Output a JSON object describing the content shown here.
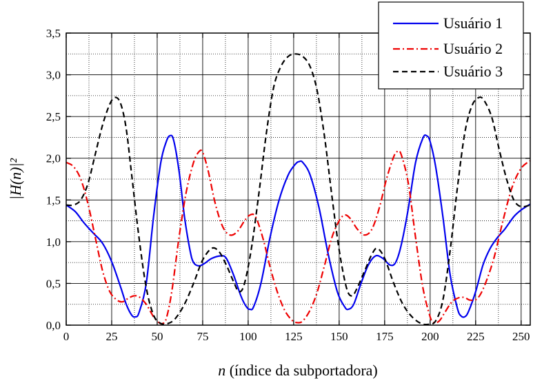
{
  "chart_data": {
    "type": "line",
    "xlabel_var": "n",
    "xlabel_rest": " (índice da subportadora)",
    "ylabel": "|H(n)|²",
    "xlim": [
      0,
      255
    ],
    "ylim": [
      0,
      3.5
    ],
    "xticks": [
      0,
      25,
      50,
      75,
      100,
      125,
      150,
      175,
      200,
      225,
      250
    ],
    "xtick_labels": [
      "0",
      "25",
      "50",
      "75",
      "100",
      "125",
      "150",
      "175",
      "200",
      "225",
      "250"
    ],
    "yticks": [
      0,
      0.5,
      1.0,
      1.5,
      2.0,
      2.5,
      3.0,
      3.5
    ],
    "ytick_labels": [
      "0,0",
      "0,5",
      "1,0",
      "1,5",
      "2,0",
      "2,5",
      "3,0",
      "3,5"
    ],
    "grid": true,
    "legend_position": "top-right",
    "series": [
      {
        "name": "Usuário 1",
        "color": "#0000ee",
        "dash": "solid",
        "points": [
          [
            0,
            1.44
          ],
          [
            5,
            1.36
          ],
          [
            10,
            1.22
          ],
          [
            15,
            1.1
          ],
          [
            20,
            0.98
          ],
          [
            25,
            0.76
          ],
          [
            30,
            0.45
          ],
          [
            33,
            0.25
          ],
          [
            36,
            0.12
          ],
          [
            38,
            0.1
          ],
          [
            40,
            0.15
          ],
          [
            44,
            0.5
          ],
          [
            48,
            1.3
          ],
          [
            52,
            1.95
          ],
          [
            55,
            2.2
          ],
          [
            57,
            2.27
          ],
          [
            59,
            2.22
          ],
          [
            62,
            1.85
          ],
          [
            65,
            1.3
          ],
          [
            68,
            0.9
          ],
          [
            70,
            0.75
          ],
          [
            73,
            0.71
          ],
          [
            76,
            0.74
          ],
          [
            80,
            0.8
          ],
          [
            85,
            0.83
          ],
          [
            88,
            0.8
          ],
          [
            92,
            0.6
          ],
          [
            96,
            0.35
          ],
          [
            99,
            0.22
          ],
          [
            101,
            0.19
          ],
          [
            103,
            0.22
          ],
          [
            107,
            0.5
          ],
          [
            112,
            1.05
          ],
          [
            117,
            1.5
          ],
          [
            122,
            1.8
          ],
          [
            126,
            1.93
          ],
          [
            128,
            1.96
          ],
          [
            130,
            1.95
          ],
          [
            134,
            1.8
          ],
          [
            139,
            1.4
          ],
          [
            144,
            0.85
          ],
          [
            149,
            0.4
          ],
          [
            153,
            0.22
          ],
          [
            155,
            0.19
          ],
          [
            158,
            0.25
          ],
          [
            162,
            0.5
          ],
          [
            166,
            0.72
          ],
          [
            170,
            0.83
          ],
          [
            174,
            0.8
          ],
          [
            178,
            0.72
          ],
          [
            181,
            0.75
          ],
          [
            184,
            0.95
          ],
          [
            188,
            1.4
          ],
          [
            192,
            1.95
          ],
          [
            196,
            2.24
          ],
          [
            198,
            2.27
          ],
          [
            200,
            2.2
          ],
          [
            203,
            1.9
          ],
          [
            207,
            1.3
          ],
          [
            211,
            0.6
          ],
          [
            215,
            0.2
          ],
          [
            217,
            0.11
          ],
          [
            219,
            0.1
          ],
          [
            221,
            0.16
          ],
          [
            225,
            0.4
          ],
          [
            229,
            0.72
          ],
          [
            233,
            0.92
          ],
          [
            237,
            1.05
          ],
          [
            241,
            1.15
          ],
          [
            246,
            1.3
          ],
          [
            250,
            1.38
          ],
          [
            255,
            1.45
          ]
        ]
      },
      {
        "name": "Usuário 2",
        "color": "#ee0000",
        "dash": "10,4,2,4",
        "points": [
          [
            0,
            1.95
          ],
          [
            4,
            1.9
          ],
          [
            8,
            1.75
          ],
          [
            12,
            1.45
          ],
          [
            16,
            1.05
          ],
          [
            20,
            0.65
          ],
          [
            24,
            0.4
          ],
          [
            28,
            0.3
          ],
          [
            31,
            0.28
          ],
          [
            34,
            0.32
          ],
          [
            37,
            0.35
          ],
          [
            40,
            0.34
          ],
          [
            44,
            0.25
          ],
          [
            48,
            0.1
          ],
          [
            51,
            0.03
          ],
          [
            53,
            0.02
          ],
          [
            55,
            0.08
          ],
          [
            58,
            0.4
          ],
          [
            62,
            1.05
          ],
          [
            66,
            1.6
          ],
          [
            70,
            1.95
          ],
          [
            73,
            2.08
          ],
          [
            75,
            2.07
          ],
          [
            78,
            1.85
          ],
          [
            82,
            1.45
          ],
          [
            86,
            1.18
          ],
          [
            90,
            1.08
          ],
          [
            94,
            1.12
          ],
          [
            98,
            1.25
          ],
          [
            101,
            1.32
          ],
          [
            104,
            1.3
          ],
          [
            108,
            1.05
          ],
          [
            112,
            0.7
          ],
          [
            116,
            0.4
          ],
          [
            120,
            0.18
          ],
          [
            124,
            0.06
          ],
          [
            127,
            0.03
          ],
          [
            130,
            0.05
          ],
          [
            134,
            0.18
          ],
          [
            138,
            0.4
          ],
          [
            142,
            0.72
          ],
          [
            146,
            1.05
          ],
          [
            150,
            1.25
          ],
          [
            153,
            1.32
          ],
          [
            156,
            1.28
          ],
          [
            160,
            1.15
          ],
          [
            164,
            1.08
          ],
          [
            168,
            1.15
          ],
          [
            172,
            1.4
          ],
          [
            176,
            1.75
          ],
          [
            180,
            2.02
          ],
          [
            182,
            2.08
          ],
          [
            184,
            2.05
          ],
          [
            188,
            1.7
          ],
          [
            192,
            1.05
          ],
          [
            196,
            0.45
          ],
          [
            200,
            0.1
          ],
          [
            202,
            0.03
          ],
          [
            205,
            0.05
          ],
          [
            208,
            0.15
          ],
          [
            212,
            0.28
          ],
          [
            216,
            0.33
          ],
          [
            219,
            0.33
          ],
          [
            222,
            0.3
          ],
          [
            226,
            0.32
          ],
          [
            230,
            0.48
          ],
          [
            235,
            0.8
          ],
          [
            240,
            1.25
          ],
          [
            245,
            1.65
          ],
          [
            250,
            1.88
          ],
          [
            255,
            1.97
          ]
        ]
      },
      {
        "name": "Usuário 3",
        "color": "#000000",
        "dash": "8,5",
        "points": [
          [
            0,
            1.44
          ],
          [
            4,
            1.44
          ],
          [
            8,
            1.5
          ],
          [
            12,
            1.7
          ],
          [
            16,
            2.05
          ],
          [
            20,
            2.4
          ],
          [
            24,
            2.65
          ],
          [
            27,
            2.73
          ],
          [
            30,
            2.65
          ],
          [
            33,
            2.35
          ],
          [
            36,
            1.8
          ],
          [
            40,
            1.05
          ],
          [
            44,
            0.45
          ],
          [
            48,
            0.12
          ],
          [
            52,
            0.02
          ],
          [
            56,
            0.02
          ],
          [
            60,
            0.08
          ],
          [
            65,
            0.25
          ],
          [
            70,
            0.5
          ],
          [
            75,
            0.78
          ],
          [
            80,
            0.92
          ],
          [
            84,
            0.88
          ],
          [
            88,
            0.72
          ],
          [
            92,
            0.52
          ],
          [
            95,
            0.4
          ],
          [
            98,
            0.5
          ],
          [
            102,
            0.95
          ],
          [
            106,
            1.6
          ],
          [
            110,
            2.3
          ],
          [
            114,
            2.85
          ],
          [
            118,
            3.1
          ],
          [
            122,
            3.22
          ],
          [
            126,
            3.25
          ],
          [
            130,
            3.22
          ],
          [
            134,
            3.1
          ],
          [
            138,
            2.8
          ],
          [
            142,
            2.25
          ],
          [
            146,
            1.55
          ],
          [
            150,
            0.9
          ],
          [
            154,
            0.45
          ],
          [
            157,
            0.35
          ],
          [
            160,
            0.45
          ],
          [
            164,
            0.65
          ],
          [
            168,
            0.85
          ],
          [
            171,
            0.92
          ],
          [
            175,
            0.8
          ],
          [
            180,
            0.5
          ],
          [
            185,
            0.25
          ],
          [
            190,
            0.1
          ],
          [
            195,
            0.02
          ],
          [
            199,
            0.01
          ],
          [
            203,
            0.05
          ],
          [
            207,
            0.3
          ],
          [
            211,
            0.9
          ],
          [
            215,
            1.65
          ],
          [
            219,
            2.3
          ],
          [
            223,
            2.63
          ],
          [
            227,
            2.73
          ],
          [
            230,
            2.68
          ],
          [
            234,
            2.48
          ],
          [
            238,
            2.1
          ],
          [
            242,
            1.75
          ],
          [
            246,
            1.5
          ],
          [
            250,
            1.42
          ],
          [
            255,
            1.44
          ]
        ]
      }
    ]
  }
}
